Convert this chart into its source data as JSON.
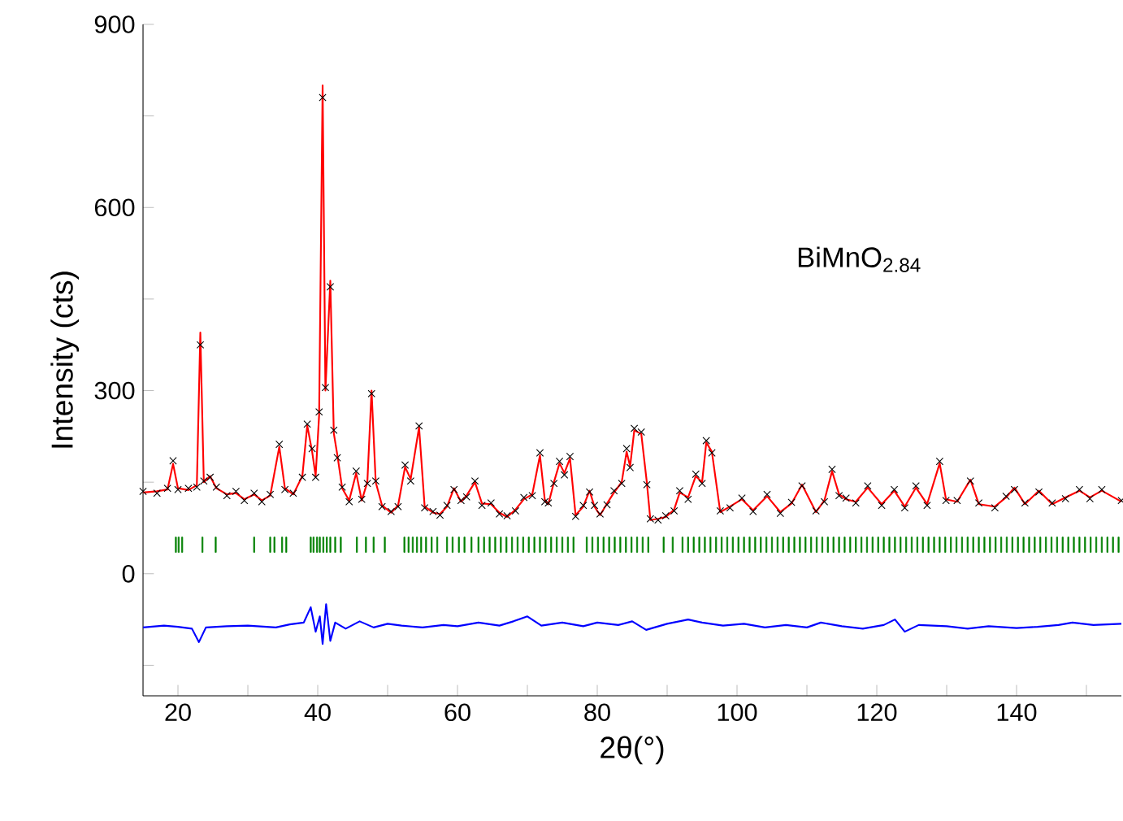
{
  "chart_data": {
    "type": "line",
    "xlabel": "2θ(°)",
    "ylabel": "Intensity (cts)",
    "annotations": [
      "BiMnO$_{2.84}$"
    ],
    "xlim": [
      15,
      155
    ],
    "ylim": [
      -200,
      900
    ],
    "xticks": [
      20,
      {
        "value": 30,
        "label": null
      },
      40,
      {
        "value": 50,
        "label": null
      },
      60,
      {
        "value": 70,
        "label": null
      },
      80,
      {
        "value": 90,
        "label": null
      },
      100,
      {
        "value": 110,
        "label": null
      },
      120,
      {
        "value": 130,
        "label": null
      },
      140,
      {
        "value": 150,
        "label": null
      }
    ],
    "yticks": [
      {
        "value": -150,
        "label": null
      },
      0,
      {
        "value": 150,
        "label": null
      },
      300,
      {
        "value": 450,
        "label": null
      },
      600,
      {
        "value": 750,
        "label": null
      },
      900
    ],
    "x": [
      15,
      17,
      18.5,
      19.3,
      20,
      21.5,
      22.7,
      23.2,
      23.7,
      24.6,
      25.5,
      27,
      28.3,
      29.5,
      30.9,
      32,
      33.2,
      34.5,
      35.3,
      36.5,
      37.8,
      38.5,
      39.2,
      39.7,
      40.2,
      40.7,
      41.1,
      41.8,
      42.3,
      42.8,
      43.5,
      44.5,
      45.5,
      46.3,
      47.1,
      47.7,
      48.3,
      49.2,
      50.5,
      51.5,
      52.5,
      53.3,
      54.5,
      55.3,
      56.5,
      57.5,
      58.5,
      59.5,
      60.5,
      61.3,
      62.5,
      63.5,
      64.8,
      66,
      67.1,
      68.3,
      69.5,
      70.7,
      71.8,
      72.5,
      73,
      73.8,
      74.6,
      75.3,
      76.1,
      76.9,
      78,
      78.9,
      79.6,
      80.4,
      81.4,
      82.4,
      83.5,
      84.2,
      84.7,
      85.3,
      86.3,
      87.1,
      87.6,
      88.7,
      89.8,
      91,
      91.8,
      93,
      94.1,
      95,
      95.6,
      96.4,
      97.6,
      99,
      100.7,
      102.3,
      104.3,
      106.2,
      107.8,
      109.3,
      111.3,
      112.5,
      113.6,
      114.6,
      115.6,
      117,
      118.7,
      120.7,
      122.5,
      124,
      125.6,
      127.2,
      129,
      129.9,
      131.5,
      133.4,
      134.6,
      136.9,
      138.5,
      139.7,
      141.2,
      143.2,
      145.1,
      147,
      149,
      150.5,
      152.2,
      155
    ],
    "series": [
      {
        "type": "scatter",
        "marker": "cross",
        "color": "#000000",
        "values": [
          135,
          132,
          140,
          185,
          138,
          140,
          142,
          375,
          152,
          158,
          142,
          128,
          135,
          120,
          132,
          118,
          130,
          212,
          138,
          132,
          158,
          245,
          205,
          158,
          265,
          780,
          305,
          470,
          235,
          190,
          142,
          118,
          168,
          122,
          148,
          295,
          152,
          110,
          102,
          110,
          178,
          152,
          242,
          108,
          102,
          96,
          112,
          138,
          120,
          126,
          152,
          112,
          116,
          98,
          95,
          103,
          125,
          128,
          198,
          118,
          116,
          148,
          184,
          162,
          192,
          94,
          112,
          134,
          112,
          98,
          113,
          136,
          148,
          205,
          174,
          238,
          232,
          146,
          90,
          88,
          95,
          103,
          136,
          122,
          163,
          148,
          218,
          198,
          103,
          108,
          124,
          102,
          130,
          99,
          117,
          144,
          103,
          118,
          171,
          128,
          124,
          116,
          144,
          112,
          138,
          108,
          144,
          112,
          184,
          120,
          120,
          152,
          116,
          108,
          127,
          138,
          116,
          134,
          116,
          123,
          138,
          123,
          138,
          120
        ]
      },
      {
        "color": "#ff0000",
        "values": [
          133,
          135,
          138,
          180,
          140,
          137,
          145,
          395,
          150,
          160,
          140,
          130,
          132,
          122,
          130,
          120,
          128,
          208,
          140,
          130,
          160,
          243,
          200,
          160,
          260,
          800,
          300,
          480,
          230,
          195,
          140,
          120,
          165,
          120,
          150,
          300,
          150,
          112,
          100,
          112,
          175,
          155,
          240,
          110,
          100,
          98,
          110,
          140,
          118,
          128,
          150,
          115,
          114,
          100,
          93,
          105,
          122,
          130,
          194,
          120,
          114,
          150,
          181,
          165,
          189,
          96,
          110,
          136,
          110,
          96,
          115,
          133,
          150,
          200,
          176,
          235,
          229,
          149,
          88,
          90,
          93,
          105,
          133,
          125,
          160,
          150,
          215,
          200,
          101,
          110,
          122,
          104,
          127,
          101,
          115,
          146,
          101,
          120,
          168,
          130,
          122,
          118,
          141,
          114,
          136,
          110,
          141,
          114,
          181,
          122,
          118,
          154,
          114,
          110,
          125,
          141,
          114,
          136,
          114,
          125,
          136,
          125,
          136,
          118
        ]
      },
      {
        "type": "bar",
        "color": "#008000",
        "base": [
          35,
          35,
          35,
          35,
          35,
          35,
          35,
          35,
          35,
          35,
          35,
          35,
          35,
          35,
          35,
          35,
          35,
          35,
          35,
          35,
          35,
          35,
          35,
          35,
          35,
          35,
          35,
          35,
          35,
          35,
          35,
          35,
          35,
          35,
          35,
          35,
          35,
          35,
          35,
          35,
          35,
          35,
          35,
          35,
          35,
          35,
          35,
          35,
          35,
          35,
          35,
          35,
          35,
          35,
          35,
          35,
          35,
          35,
          35,
          35,
          35,
          35,
          35,
          35,
          35,
          35,
          35,
          35,
          35,
          35,
          35,
          35,
          35,
          35,
          35,
          35,
          35,
          35,
          35,
          35,
          35,
          35,
          35,
          35,
          35,
          35,
          35,
          35,
          35,
          35,
          35,
          35,
          35,
          35,
          35,
          35,
          35,
          35,
          35,
          35,
          35,
          35,
          35,
          35,
          35,
          35,
          35,
          35,
          35,
          35,
          35,
          35,
          35,
          35,
          35,
          35,
          35,
          35,
          35,
          35,
          35,
          35,
          35,
          35,
          35,
          35,
          35,
          35,
          35,
          35,
          35,
          35,
          35,
          35,
          35,
          35,
          35,
          35,
          35,
          35,
          35,
          35,
          35,
          35,
          35,
          35,
          35
        ],
        "x": [
          19.7,
          20.1,
          20.6,
          23.5,
          25.4,
          30.9,
          33.2,
          33.8,
          34.9,
          35.5,
          39.0,
          39.4,
          39.9,
          40.3,
          40.8,
          41.3,
          41.8,
          42.5,
          43.3,
          45.6,
          46.9,
          48.0,
          49.6,
          52.4,
          53.0,
          53.6,
          54.2,
          54.8,
          55.5,
          56.3,
          57.1,
          58.5,
          59.3,
          60.2,
          61.0,
          62.0,
          63.0,
          63.8,
          64.6,
          65.4,
          66.2,
          67.0,
          67.8,
          68.6,
          69.4,
          70.2,
          71.0,
          71.8,
          72.6,
          73.4,
          74.2,
          75.0,
          75.8,
          76.6,
          78.5,
          79.3,
          80.1,
          80.9,
          81.7,
          82.5,
          83.3,
          84.1,
          84.9,
          85.7,
          86.5,
          87.3,
          89.5,
          90.8,
          92.2,
          93.0,
          93.8,
          94.6,
          95.4,
          96.2,
          97.0,
          97.8,
          98.6,
          99.4,
          100.2,
          101.0,
          101.8,
          102.6,
          103.4,
          104.2,
          105.0,
          105.8,
          106.6,
          107.4,
          108.2,
          109.0,
          109.8,
          110.6,
          111.4,
          112.2,
          113.0,
          113.8,
          114.6,
          115.4,
          116.2,
          117.0,
          117.8,
          118.6,
          119.4,
          120.2,
          121.0,
          121.8,
          122.6,
          123.4,
          124.2,
          125.0,
          125.8,
          126.6,
          127.4,
          128.2,
          129.0,
          129.8,
          130.6,
          131.4,
          132.2,
          133.0,
          133.8,
          134.6,
          135.4,
          136.2,
          137.0,
          137.8,
          138.6,
          139.4,
          140.2,
          141.0,
          141.8,
          142.6,
          143.4,
          144.2,
          145.0,
          145.8,
          146.6,
          147.4,
          148.2,
          149.0,
          149.8,
          150.6,
          151.4,
          152.2,
          153.0,
          153.8,
          154.6
        ],
        "values": [
          25,
          25,
          25,
          25,
          25,
          25,
          25,
          25,
          25,
          25,
          25,
          25,
          25,
          25,
          25,
          25,
          25,
          25,
          25,
          25,
          25,
          25,
          25,
          25,
          25,
          25,
          25,
          25,
          25,
          25,
          25,
          25,
          25,
          25,
          25,
          25,
          25,
          25,
          25,
          25,
          25,
          25,
          25,
          25,
          25,
          25,
          25,
          25,
          25,
          25,
          25,
          25,
          25,
          25,
          25,
          25,
          25,
          25,
          25,
          25,
          25,
          25,
          25,
          25,
          25,
          25,
          25,
          25,
          25,
          25,
          25,
          25,
          25,
          25,
          25,
          25,
          25,
          25,
          25,
          25,
          25,
          25,
          25,
          25,
          25,
          25,
          25,
          25,
          25,
          25,
          25,
          25,
          25,
          25,
          25,
          25,
          25,
          25,
          25,
          25,
          25,
          25,
          25,
          25,
          25,
          25,
          25,
          25,
          25,
          25,
          25,
          25,
          25,
          25,
          25,
          25,
          25,
          25,
          25,
          25,
          25,
          25,
          25,
          25,
          25,
          25,
          25,
          25,
          25,
          25,
          25,
          25,
          25,
          25,
          25,
          25,
          25,
          25,
          25,
          25,
          25,
          25,
          25,
          25,
          25,
          25,
          25
        ]
      },
      {
        "type": "line",
        "color": "#0000ff",
        "x": [
          15,
          18,
          20,
          22,
          23,
          24,
          27,
          30,
          34,
          36,
          38,
          39,
          39.7,
          40.3,
          40.7,
          41.2,
          41.8,
          42.5,
          44,
          46,
          48,
          50,
          52,
          55,
          58,
          60,
          63,
          66,
          68,
          70,
          72,
          75,
          78,
          80,
          83,
          85,
          87,
          90,
          93,
          95,
          98,
          101,
          104,
          107,
          110,
          112,
          115,
          118,
          121,
          122.6,
          124,
          126,
          130,
          133,
          136,
          140,
          143,
          146,
          148,
          151,
          155
        ],
        "values": [
          -88,
          -85,
          -87,
          -90,
          -112,
          -88,
          -86,
          -85,
          -88,
          -83,
          -80,
          -55,
          -95,
          -70,
          -115,
          -50,
          -110,
          -80,
          -90,
          -78,
          -88,
          -82,
          -85,
          -88,
          -84,
          -86,
          -80,
          -85,
          -78,
          -70,
          -85,
          -80,
          -86,
          -80,
          -84,
          -78,
          -92,
          -82,
          -75,
          -80,
          -85,
          -82,
          -88,
          -84,
          -88,
          -80,
          -86,
          -90,
          -84,
          -75,
          -95,
          -84,
          -86,
          -90,
          -86,
          -89,
          -87,
          -84,
          -80,
          -84,
          -82
        ]
      }
    ]
  }
}
